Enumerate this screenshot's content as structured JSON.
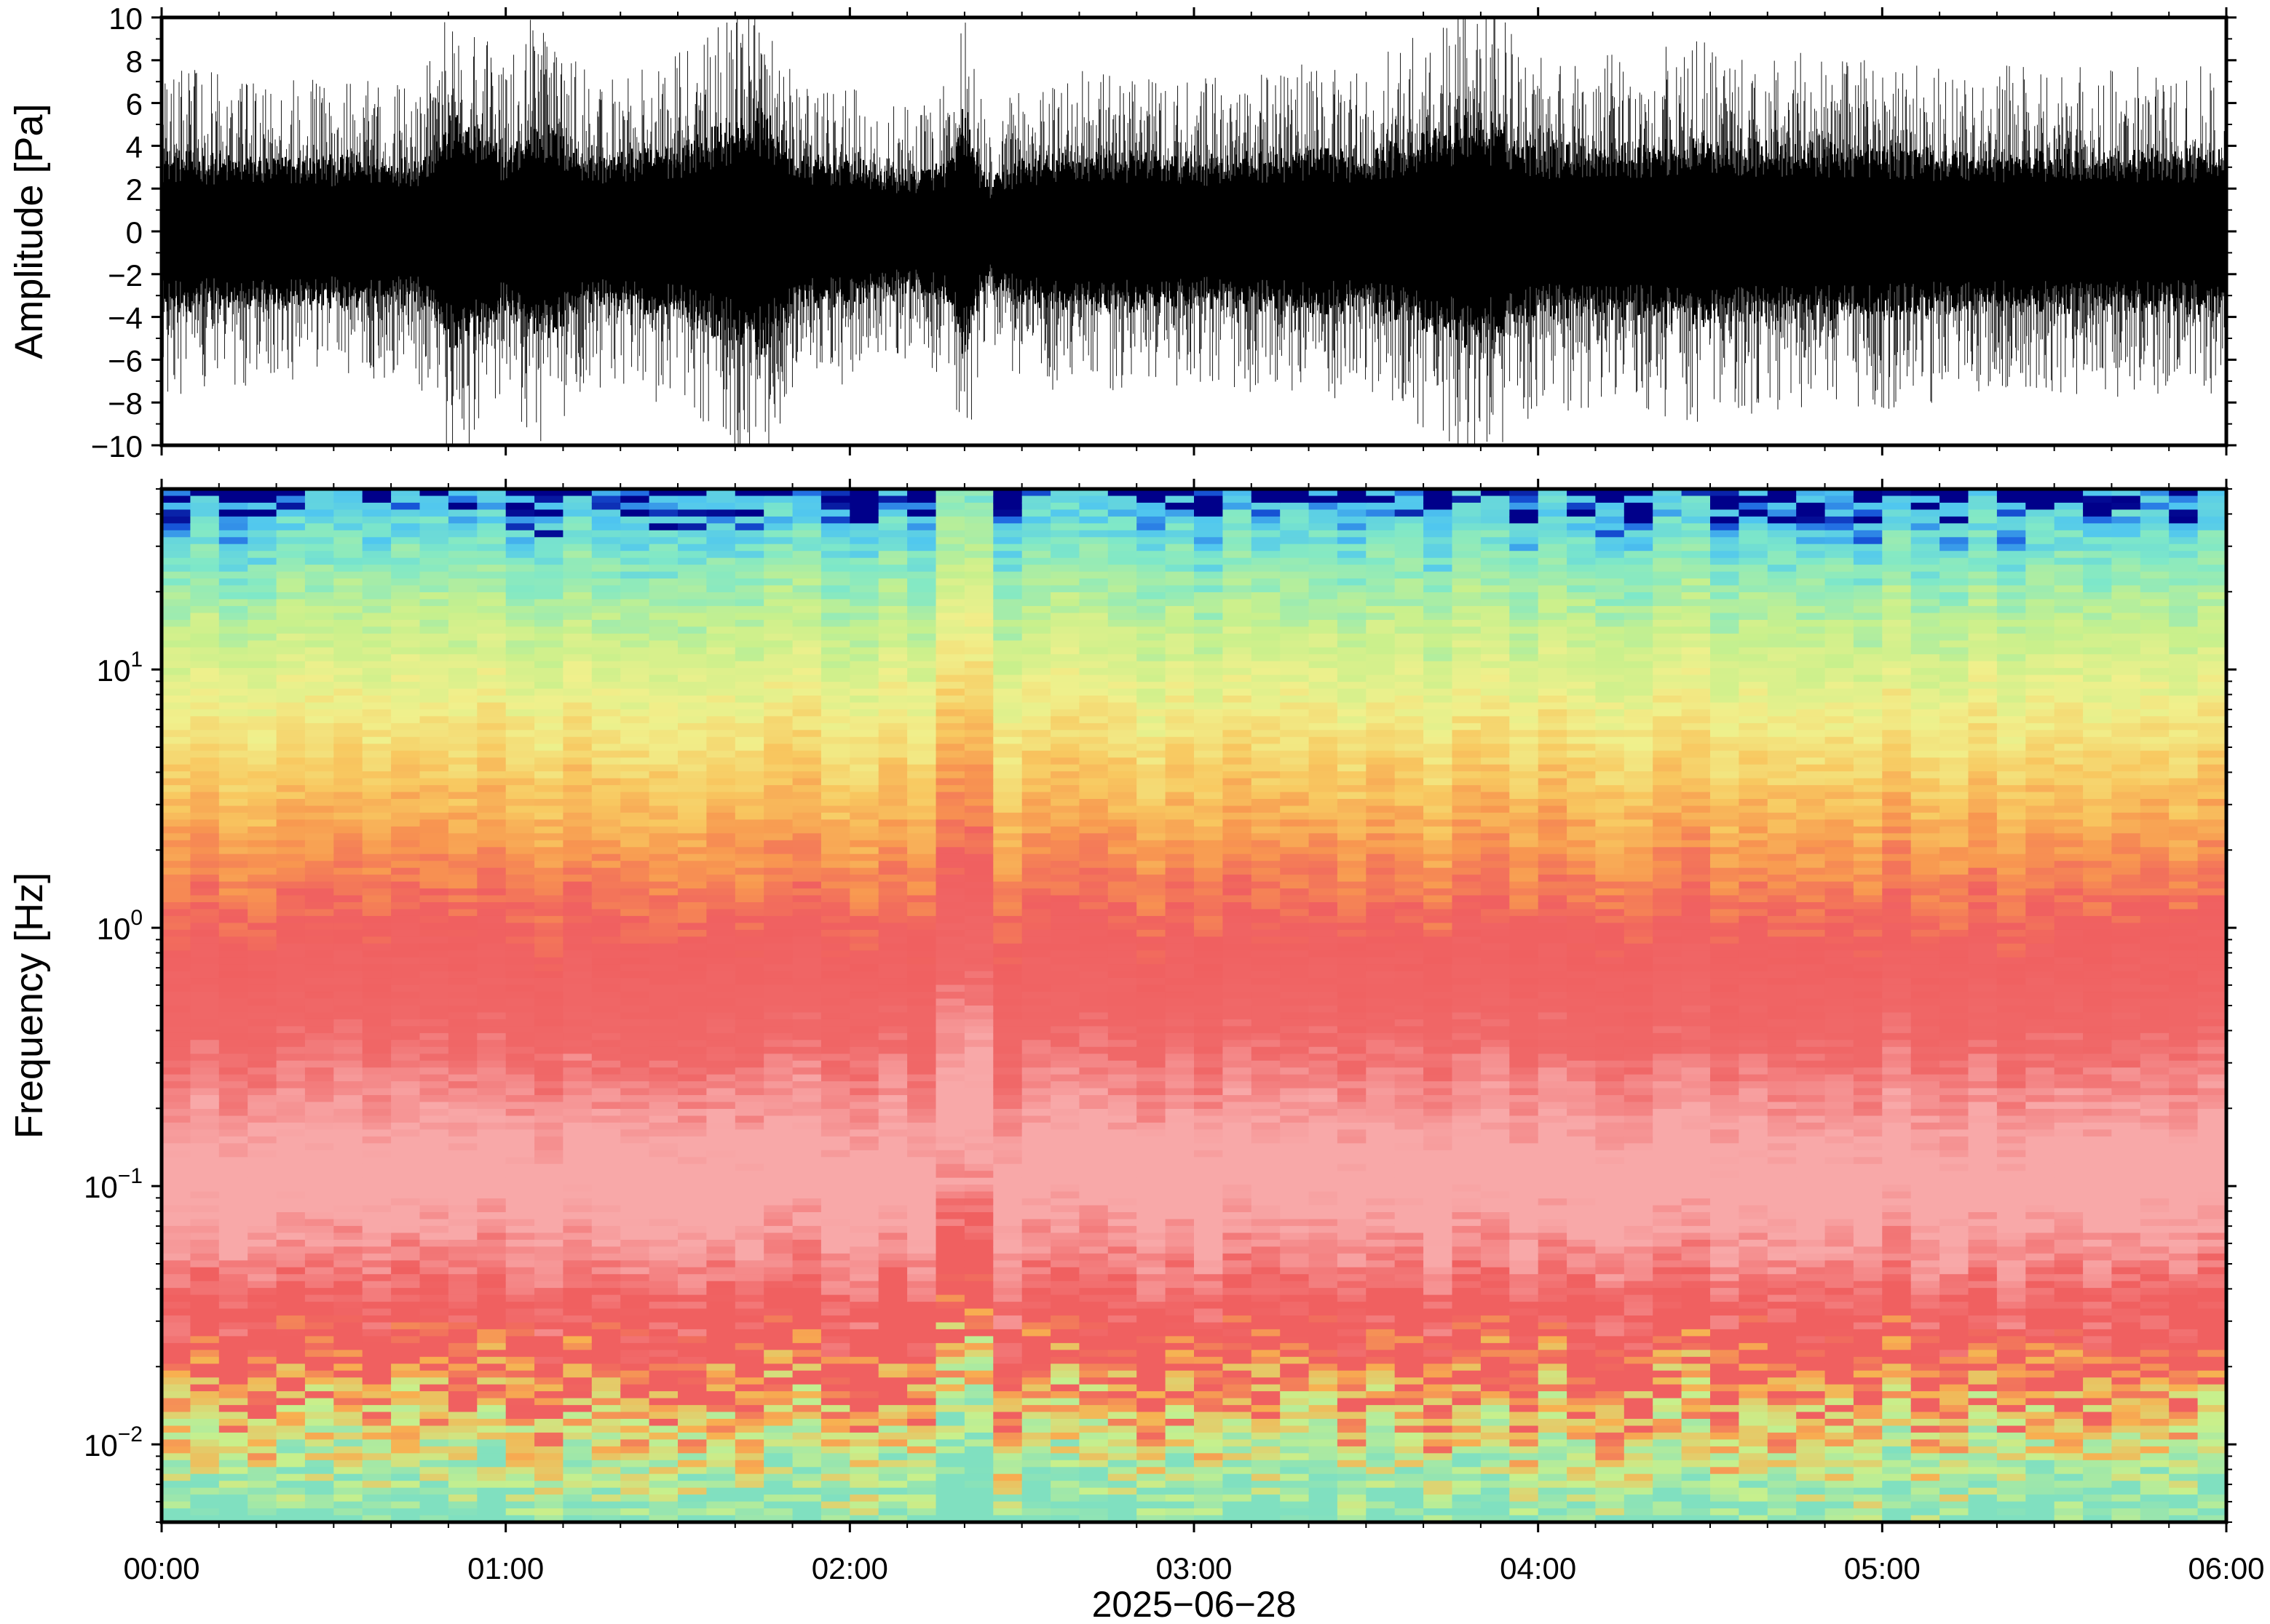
{
  "chart_data": [
    {
      "type": "line",
      "panel": "waveform",
      "ylabel": "Amplitude [Pa]",
      "ylim": [
        -10,
        10
      ],
      "yticks": [
        -10,
        -8,
        -6,
        -4,
        -2,
        0,
        2,
        4,
        6,
        8,
        10
      ],
      "ytick_labels": [
        "−10",
        "−8",
        "−6",
        "−4",
        "−2",
        "0",
        "2",
        "4",
        "6",
        "8",
        "10"
      ],
      "xlim_hours": [
        0,
        6
      ],
      "grid": false,
      "series": [
        {
          "color": "#000000",
          "envelope_hours": [
            0,
            0.25,
            0.5,
            0.75,
            0.85,
            1.0,
            1.1,
            1.25,
            1.5,
            1.7,
            1.75,
            1.85,
            2.0,
            2.1,
            2.2,
            2.3,
            2.33,
            2.35,
            2.4,
            2.5,
            2.75,
            3.0,
            3.25,
            3.5,
            3.75,
            3.8,
            4.0,
            4.25,
            4.5,
            4.75,
            5.0,
            5.25,
            5.5,
            5.75,
            6.0
          ],
          "envelope_pa": [
            6.5,
            6.0,
            6.0,
            6.0,
            9.5,
            6.5,
            9.0,
            6.0,
            7.0,
            9.5,
            10.0,
            6.0,
            6.0,
            5.0,
            5.0,
            6.0,
            10.0,
            8.0,
            4.0,
            6.0,
            6.5,
            6.0,
            6.5,
            6.5,
            8.5,
            9.5,
            7.0,
            7.0,
            7.5,
            7.0,
            7.0,
            6.5,
            6.5,
            6.5,
            6.5
          ]
        }
      ]
    },
    {
      "type": "heatmap",
      "panel": "spectrogram",
      "ylabel": "Frequency [Hz]",
      "xlabel": "2025−06−28",
      "y_scale": "log",
      "ylim": [
        0.005,
        50
      ],
      "ytick_labels": [
        {
          "base": "10",
          "exp": "−2",
          "value": 0.01
        },
        {
          "base": "10",
          "exp": "−1",
          "value": 0.1
        },
        {
          "base": "10",
          "exp": "0",
          "value": 1
        },
        {
          "base": "10",
          "exp": "1",
          "value": 10
        }
      ],
      "x_tick_labels": [
        "00:00",
        "01:00",
        "02:00",
        "03:00",
        "04:00",
        "05:00",
        "06:00"
      ],
      "xlim_hours": [
        0,
        6
      ],
      "colormap": [
        "#00008a",
        "#1a5fe0",
        "#4fc6f0",
        "#7fe8c8",
        "#c8f08c",
        "#f0f08c",
        "#f8c860",
        "#f89850",
        "#f06060",
        "#f8a8a8",
        "#f06868",
        "#f8b050",
        "#c8f08c",
        "#80e0c0"
      ],
      "features": [
        {
          "hours": 2.33,
          "note": "broadband vertical streak"
        }
      ],
      "grid": false
    }
  ]
}
